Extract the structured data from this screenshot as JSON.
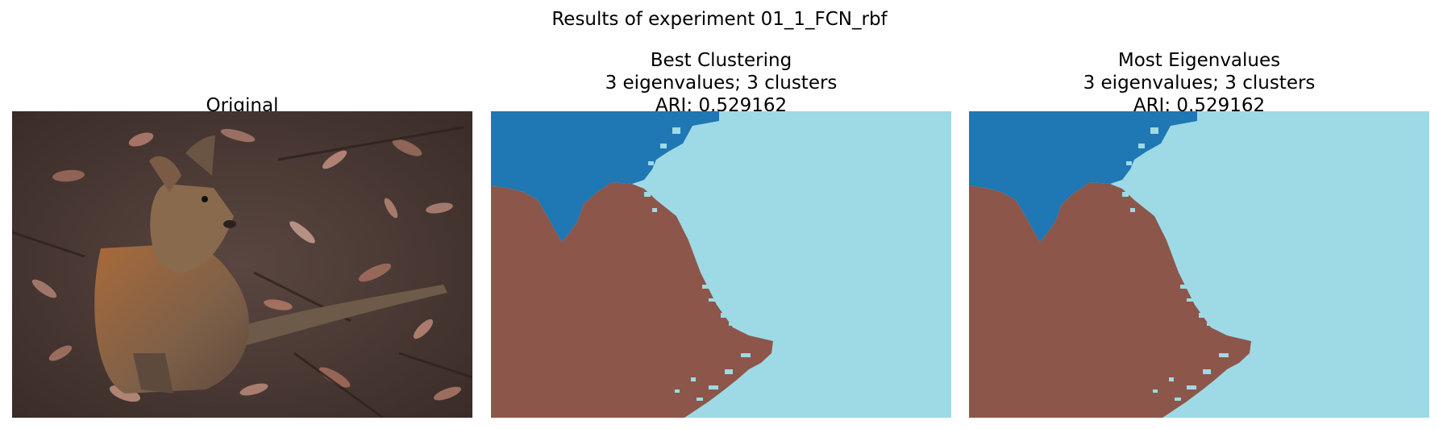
{
  "figure": {
    "suptitle": "Results of experiment 01_1_FCN_rbf"
  },
  "panels": [
    {
      "title_lines": [
        "Original"
      ]
    },
    {
      "title_lines": [
        "Best Clustering",
        "3 eigenvalues; 3 clusters",
        "ARI: 0.529162"
      ]
    },
    {
      "title_lines": [
        "Most Eigenvalues",
        "3 eigenvalues; 3 clusters",
        "ARI: 0.529162"
      ]
    }
  ],
  "colors": {
    "cluster_blue": "#1f77b4",
    "cluster_brown": "#8c564b",
    "cluster_light_blue": "#9edae5",
    "photo_ground": "#4a3a33",
    "animal_fur": "#7a5a3e"
  }
}
